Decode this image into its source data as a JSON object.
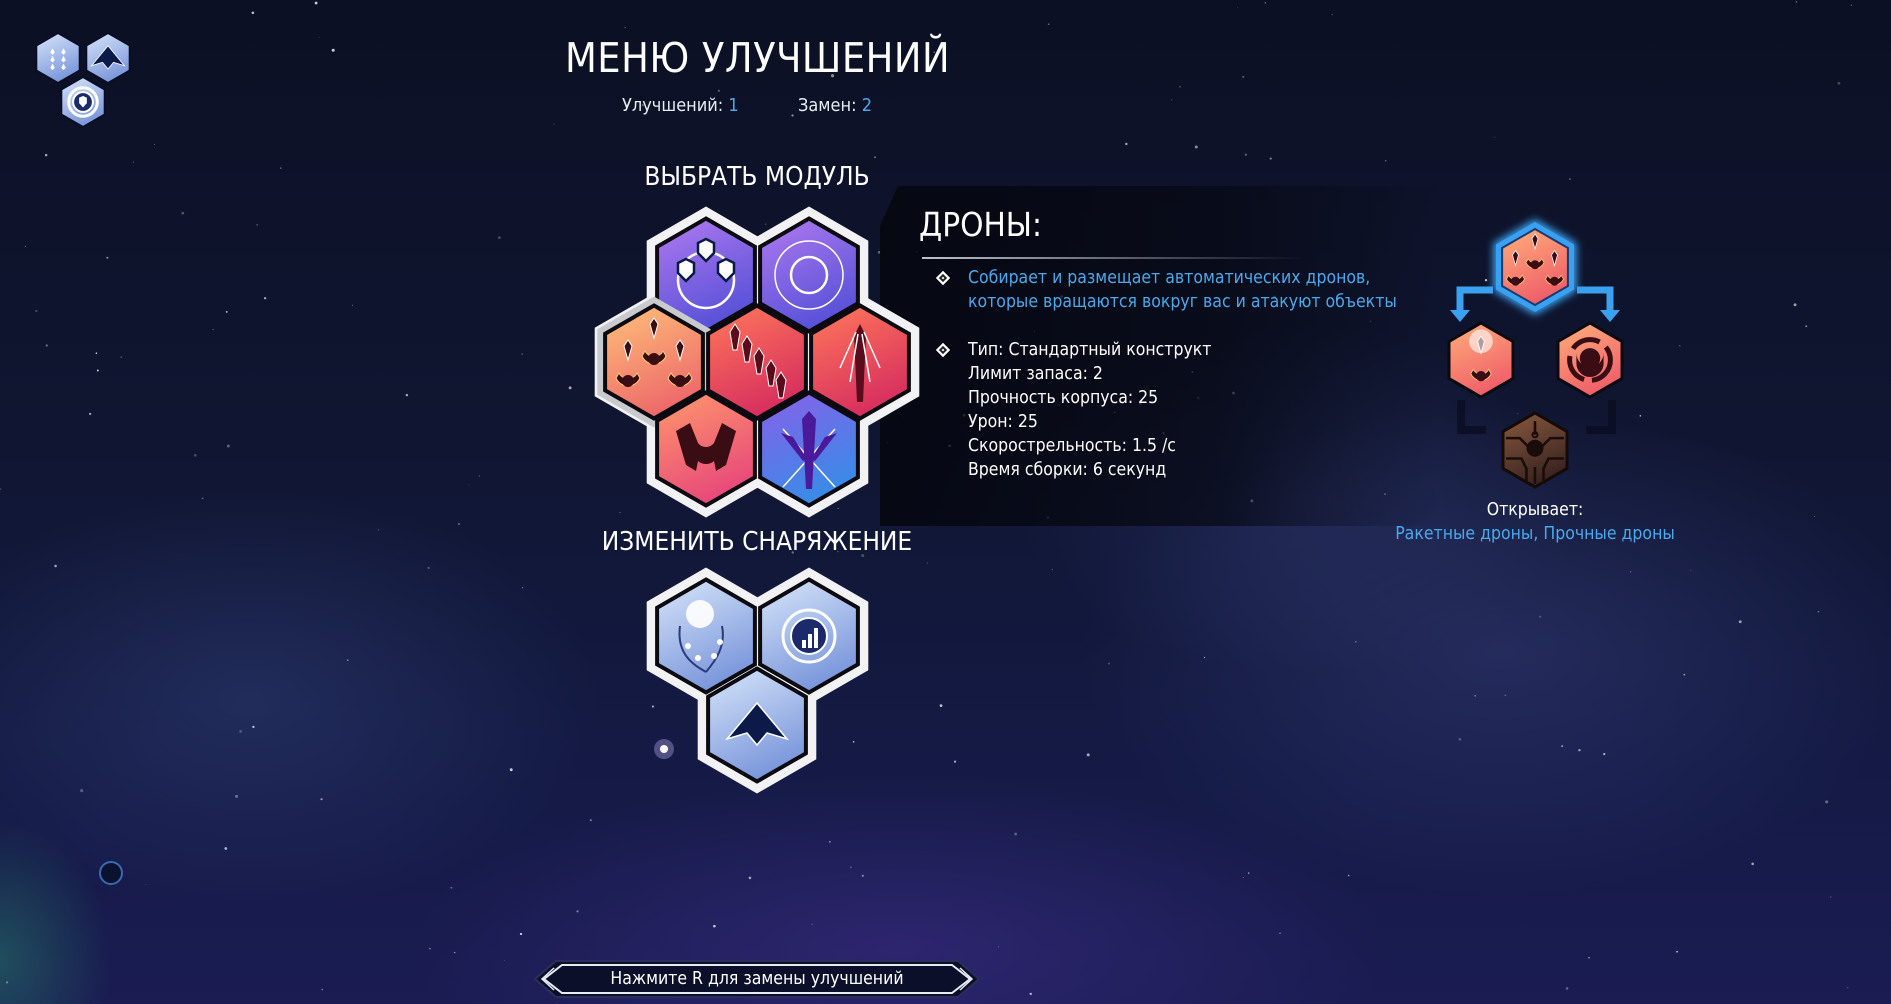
{
  "header": {
    "title": "МЕНЮ УЛУЧШЕНИЙ",
    "upgrades_label": "Улучшений:",
    "upgrades_value": "1",
    "swaps_label": "Замен:",
    "swaps_value": "2"
  },
  "loadout_icons": [
    "thrusters-icon",
    "ship-icon",
    "shield-core-icon"
  ],
  "select_module": {
    "heading": "ВЫБРАТЬ МОДУЛЬ",
    "modules": [
      {
        "icon": "shield-orbit-icon",
        "theme": "purple",
        "selected": false
      },
      {
        "icon": "ring-pulse-icon",
        "theme": "purple",
        "selected": false
      },
      {
        "icon": "drones-icon",
        "theme": "orange",
        "selected": true
      },
      {
        "icon": "missile-barrage-icon",
        "theme": "red",
        "selected": false
      },
      {
        "icon": "lance-icon",
        "theme": "red",
        "selected": false
      },
      {
        "icon": "armor-clamp-icon",
        "theme": "pink",
        "selected": false
      },
      {
        "icon": "spike-burst-icon",
        "theme": "blue",
        "selected": false
      }
    ]
  },
  "change_equipment": {
    "heading": "ИЗМЕНИТЬ СНАРЯЖЕНИЕ",
    "items": [
      {
        "icon": "orb-thrusters-icon"
      },
      {
        "icon": "stats-core-icon"
      },
      {
        "icon": "hull-icon"
      }
    ]
  },
  "detail": {
    "name": "ДРОНЫ:",
    "description": [
      "Собирает и размещает автоматических дронов,",
      "которые вращаются вокруг вас и атакуют объекты"
    ],
    "stats": [
      "Тип: Стандартный конструкт",
      "Лимит запаса: 2",
      "Прочность корпуса: 25",
      "Урон: 25",
      "Скорострельность: 1.5 /с",
      "Время сборки: 6 секунд"
    ]
  },
  "tree": {
    "nodes": [
      "drones-icon",
      "rocket-drones-icon",
      "sturdy-drones-icon",
      "circuit-drone-icon"
    ],
    "unlocks_label": "Открывает:",
    "unlocks_value": "Ракетные дроны, Прочные дроны"
  },
  "footer": {
    "hint": "Нажмите R для замены улучшений"
  },
  "colors": {
    "accent_blue": "#4aa9ec",
    "text": "#ffffff",
    "background": "#101632"
  }
}
